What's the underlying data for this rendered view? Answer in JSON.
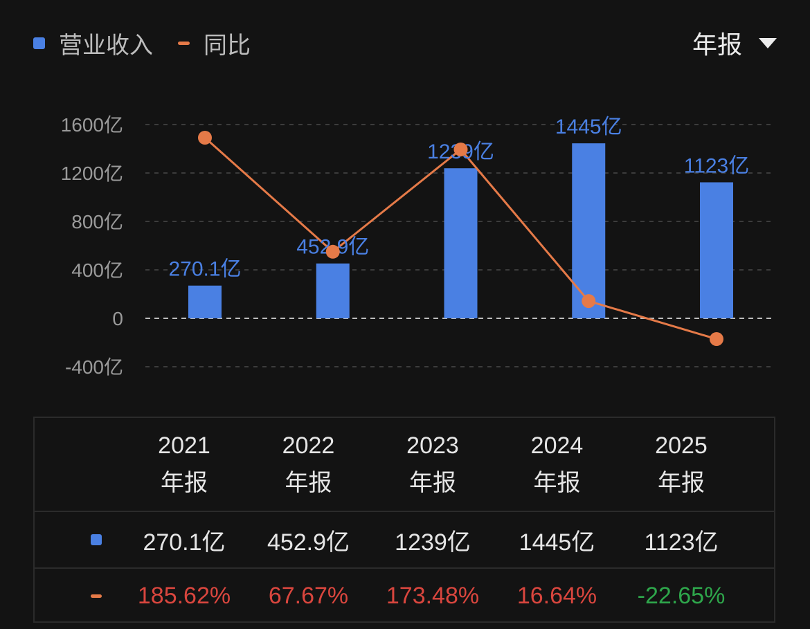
{
  "legend": {
    "revenue_label": "营业收入",
    "yoy_label": "同比"
  },
  "period_selector": {
    "label": "年报"
  },
  "colors": {
    "bar": "#4a80e3",
    "line": "#e57a48",
    "grid": "#4a4a4a",
    "positive": "#d9463e",
    "negative": "#2ea64b"
  },
  "chart_data": {
    "type": "bar",
    "categories": [
      "2021",
      "2022",
      "2023",
      "2024",
      "2025"
    ],
    "y_ticks": [
      "1600亿",
      "1200亿",
      "800亿",
      "400亿",
      "0",
      "-400亿"
    ],
    "ylim": [
      -400,
      1600
    ],
    "grid": true,
    "series": [
      {
        "name": "营业收入",
        "type": "bar",
        "values": [
          270.1,
          452.9,
          1239,
          1445,
          1123
        ],
        "labels": [
          "270.1亿",
          "452.9亿",
          "1239亿",
          "1445亿",
          "1123亿"
        ]
      },
      {
        "name": "同比",
        "type": "line",
        "values": [
          185.62,
          67.67,
          173.48,
          16.64,
          -22.65
        ]
      }
    ]
  },
  "table": {
    "years": [
      "2021",
      "2022",
      "2023",
      "2024",
      "2025"
    ],
    "period": "年报",
    "revenue": [
      "270.1亿",
      "452.9亿",
      "1239亿",
      "1445亿",
      "1123亿"
    ],
    "yoy": [
      "185.62%",
      "67.67%",
      "173.48%",
      "16.64%",
      "-22.65%"
    ]
  }
}
